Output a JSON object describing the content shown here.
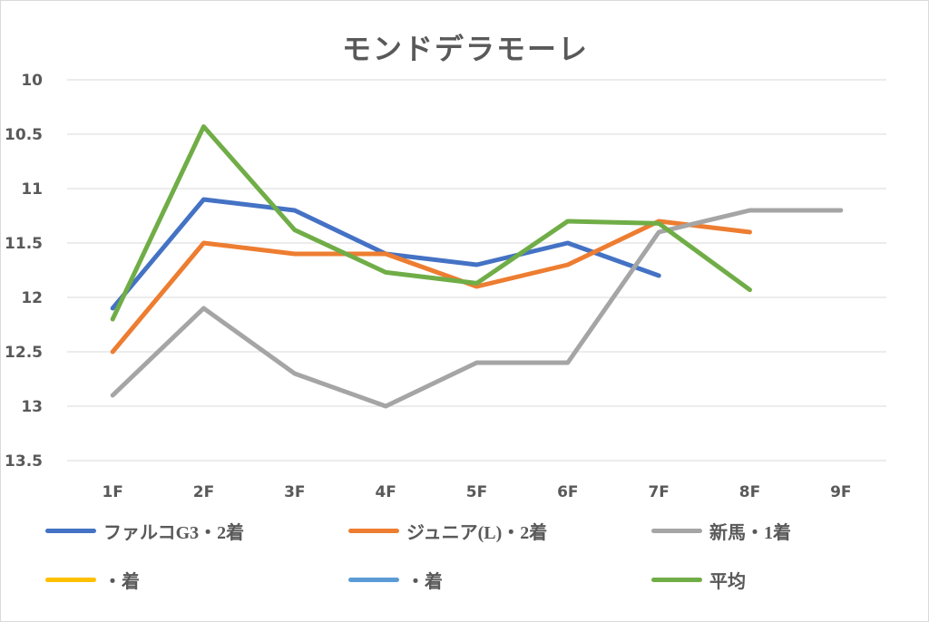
{
  "chart_data": {
    "type": "line",
    "title": "モンドデラモーレ",
    "categories": [
      "1F",
      "2F",
      "3F",
      "4F",
      "5F",
      "6F",
      "7F",
      "8F",
      "9F"
    ],
    "yaxis": {
      "ticks": [
        "10",
        "10.5",
        "11",
        "11.5",
        "12",
        "12.5",
        "13",
        "13.5"
      ],
      "reversed": true,
      "ylim": [
        10,
        13.5
      ],
      "grid": true
    },
    "legend_position": "bottom",
    "series": [
      {
        "name": "ファルコG3・2着",
        "color": "#4472c4",
        "values": [
          12.1,
          11.1,
          11.2,
          11.6,
          11.7,
          11.5,
          11.8,
          null,
          null
        ]
      },
      {
        "name": "ジュニア(L)・2着",
        "color": "#ed7d31",
        "values": [
          12.5,
          11.5,
          11.6,
          11.6,
          11.9,
          11.7,
          11.3,
          11.4,
          null
        ]
      },
      {
        "name": "新馬・1着",
        "color": "#a5a5a5",
        "values": [
          12.9,
          12.1,
          12.7,
          13.0,
          12.6,
          12.6,
          11.4,
          11.2,
          11.2
        ]
      },
      {
        "name": "・着",
        "color": "#ffc000",
        "values": [
          null,
          null,
          null,
          null,
          null,
          null,
          null,
          null,
          null
        ]
      },
      {
        "name": "・着",
        "color": "#5b9bd5",
        "values": [
          null,
          null,
          null,
          null,
          null,
          null,
          null,
          null,
          null
        ]
      },
      {
        "name": "平均",
        "color": "#70ad47",
        "values": [
          12.2,
          10.43,
          11.38,
          11.77,
          11.87,
          11.3,
          11.32,
          11.93,
          null
        ]
      }
    ]
  }
}
